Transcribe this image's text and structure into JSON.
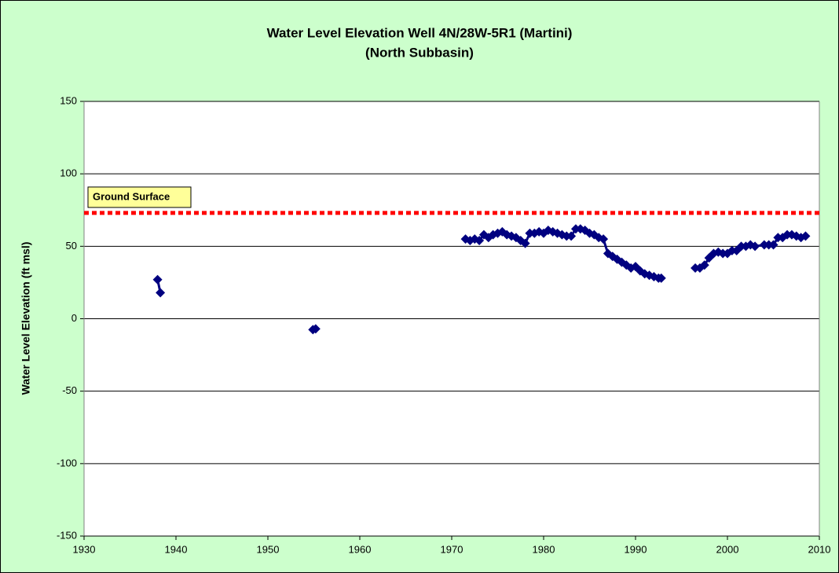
{
  "chart_data": {
    "type": "line",
    "title": "Water Level Elevation Well 4N/28W-5R1 (Martini)",
    "subtitle": "(North Subbasin)",
    "y_label": "Water Level Elevation (ft msl)",
    "xlim": [
      1930,
      2010
    ],
    "xticks": [
      1930,
      1940,
      1950,
      1960,
      1970,
      1980,
      1990,
      2000,
      2010
    ],
    "ylim": [
      -150,
      150
    ],
    "yticks": [
      -150,
      -100,
      -50,
      0,
      50,
      100,
      150
    ],
    "grid": true,
    "reference_line": {
      "label": "Ground Surface",
      "value": 73,
      "color": "#ff0000"
    },
    "series": [
      {
        "color": "#000080",
        "x": [
          1938.0,
          1938.3,
          1946,
          1954.9,
          1955.2,
          1964,
          1971.5,
          1972.0,
          1972.5,
          1973.0,
          1973.5,
          1974.0,
          1974.5,
          1975.0,
          1975.5,
          1976.0,
          1976.5,
          1977.0,
          1977.5,
          1978.0,
          1978.5,
          1979.0,
          1979.5,
          1980.0,
          1980.5,
          1981.0,
          1981.5,
          1982.0,
          1982.5,
          1983.0,
          1983.5,
          1984.0,
          1984.5,
          1985.0,
          1985.5,
          1986.0,
          1986.5,
          1987.0,
          1987.5,
          1988.0,
          1988.5,
          1989.0,
          1989.5,
          1990.0,
          1990.5,
          1991.0,
          1991.5,
          1992.0,
          1992.5,
          1992.8,
          1994.5,
          1996.5,
          1997.0,
          1997.5,
          1998.0,
          1998.5,
          1999.0,
          1999.5,
          2000.0,
          2000.5,
          2001.0,
          2001.5,
          2002.0,
          2002.5,
          2003.0,
          2004.0,
          2004.5,
          2005.0,
          2005.5,
          2006.0,
          2006.5,
          2007.0,
          2007.5,
          2008.0,
          2008.5
        ],
        "values": [
          27,
          18,
          null,
          -7.5,
          -7,
          null,
          55,
          54,
          55,
          54,
          58,
          56,
          58,
          59,
          60,
          58,
          57,
          56,
          54,
          52,
          59,
          59,
          60,
          59,
          61,
          60,
          59,
          58,
          57,
          57,
          62,
          62,
          61,
          59,
          58,
          56,
          55,
          45,
          43,
          41,
          39,
          37,
          35,
          36,
          33,
          31,
          30,
          29,
          28,
          28,
          null,
          35,
          35,
          37,
          42,
          45,
          46,
          45,
          45,
          47,
          47,
          50,
          50,
          51,
          50,
          51,
          51,
          51,
          56,
          56,
          58,
          58,
          57,
          56,
          57
        ]
      }
    ]
  }
}
